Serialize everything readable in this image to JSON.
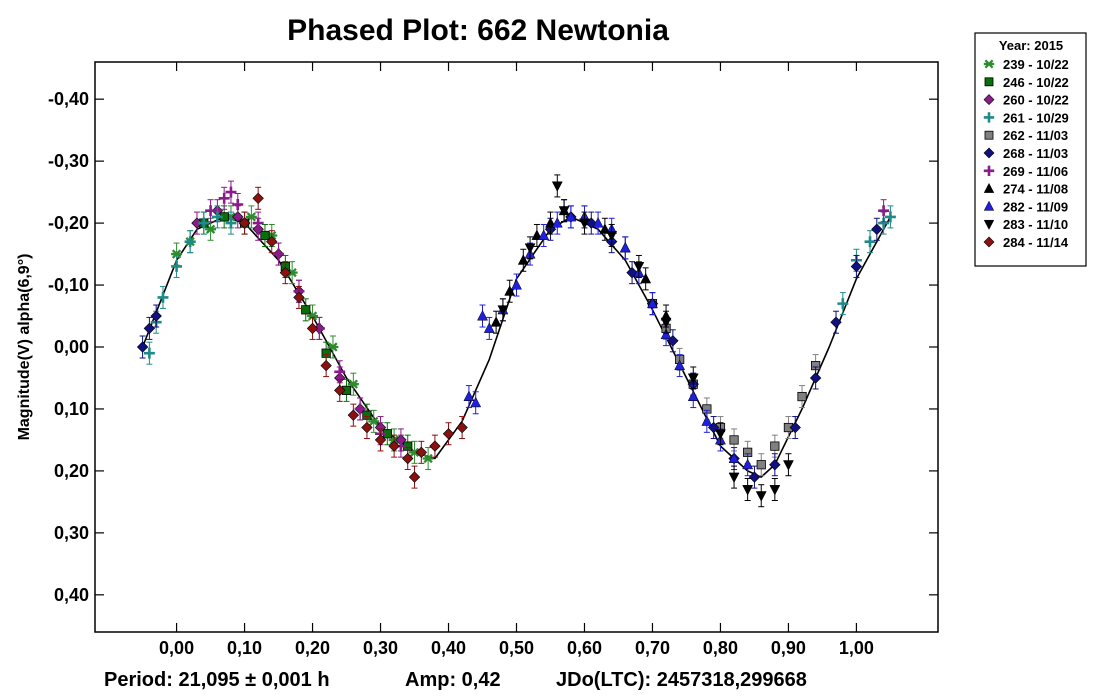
{
  "chart_data": {
    "type": "scatter",
    "title": "Phased Plot: 662 Newtonia",
    "xlabel": "",
    "ylabel": "Magnitude(V) alpha(6,9°)",
    "xlim": [
      -0.12,
      1.12
    ],
    "ylim": [
      -0.46,
      0.46
    ],
    "y_inverted": true,
    "x_ticks": [
      0.0,
      0.1,
      0.2,
      0.3,
      0.4,
      0.5,
      0.6,
      0.7,
      0.8,
      0.9,
      1.0
    ],
    "x_tick_labels": [
      "0,00",
      "0,10",
      "0,20",
      "0,30",
      "0,40",
      "0,50",
      "0,60",
      "0,70",
      "0,80",
      "0,90",
      "1,00"
    ],
    "y_ticks": [
      -0.4,
      -0.3,
      -0.2,
      -0.1,
      0.0,
      0.1,
      0.2,
      0.3,
      0.4
    ],
    "y_tick_labels": [
      "-0,40",
      "-0,30",
      "-0,20",
      "-0,10",
      "0,00",
      "0,10",
      "0,20",
      "0,30",
      "0,40"
    ],
    "fit_curve": {
      "x": [
        -0.05,
        0.0,
        0.03,
        0.07,
        0.1,
        0.15,
        0.2,
        0.25,
        0.3,
        0.35,
        0.38,
        0.42,
        0.46,
        0.5,
        0.55,
        0.58,
        0.62,
        0.66,
        0.7,
        0.75,
        0.8,
        0.84,
        0.86,
        0.88,
        0.92,
        0.96,
        1.0,
        1.05
      ],
      "y": [
        0.0,
        -0.14,
        -0.19,
        -0.21,
        -0.2,
        -0.14,
        -0.05,
        0.05,
        0.13,
        0.17,
        0.18,
        0.12,
        0.02,
        -0.11,
        -0.19,
        -0.21,
        -0.19,
        -0.14,
        -0.06,
        0.05,
        0.16,
        0.2,
        0.21,
        0.19,
        0.1,
        0.0,
        -0.11,
        -0.21
      ]
    },
    "legend": {
      "header": "Year: 2015",
      "position": "right",
      "entries": [
        {
          "label": "239 - 10/22",
          "marker": "asterisk",
          "color": "#2e8b2e"
        },
        {
          "label": "246 - 10/22",
          "marker": "square",
          "color": "#0a6e0a"
        },
        {
          "label": "260 - 10/22",
          "marker": "diamond",
          "color": "#8b1a8b"
        },
        {
          "label": "261 - 10/29",
          "marker": "plus",
          "color": "#1f8a8a"
        },
        {
          "label": "262 - 11/03",
          "marker": "square",
          "color": "#808080"
        },
        {
          "label": "268 - 11/03",
          "marker": "diamond",
          "color": "#101080"
        },
        {
          "label": "269 - 11/06",
          "marker": "plus",
          "color": "#8b1a8b"
        },
        {
          "label": "274 - 11/08",
          "marker": "triangle-up",
          "color": "#000000"
        },
        {
          "label": "282 - 11/09",
          "marker": "triangle-up",
          "color": "#1f1fe0"
        },
        {
          "label": "283 - 11/10",
          "marker": "triangle-down",
          "color": "#000000"
        },
        {
          "label": "284 - 11/14",
          "marker": "diamond",
          "color": "#8b1010"
        }
      ]
    },
    "series": [
      {
        "name": "239 - 10/22",
        "x": [
          0.0,
          0.02,
          0.05,
          0.08,
          0.11,
          0.14,
          0.17,
          0.2,
          0.23,
          0.26,
          0.29,
          0.32,
          0.35,
          0.37
        ],
        "y": [
          -0.15,
          -0.17,
          -0.19,
          -0.21,
          -0.21,
          -0.18,
          -0.12,
          -0.05,
          0.0,
          0.06,
          0.12,
          0.15,
          0.17,
          0.18
        ]
      },
      {
        "name": "246 - 10/22",
        "x": [
          0.04,
          0.07,
          0.1,
          0.13,
          0.16,
          0.19,
          0.22,
          0.25,
          0.28,
          0.31,
          0.34
        ],
        "y": [
          -0.2,
          -0.21,
          -0.2,
          -0.18,
          -0.13,
          -0.06,
          0.01,
          0.07,
          0.11,
          0.14,
          0.16
        ]
      },
      {
        "name": "260 - 10/22",
        "x": [
          0.03,
          0.06,
          0.09,
          0.12,
          0.15,
          0.18,
          0.21,
          0.24,
          0.27,
          0.3,
          0.33
        ],
        "y": [
          -0.2,
          -0.22,
          -0.21,
          -0.19,
          -0.15,
          -0.09,
          -0.03,
          0.05,
          0.1,
          0.13,
          0.15
        ]
      },
      {
        "name": "261 - 10/29",
        "x": [
          -0.04,
          -0.03,
          -0.02,
          0.0,
          0.02,
          0.04,
          0.06,
          0.08,
          0.1,
          0.98,
          1.0,
          1.02,
          1.04,
          1.05
        ],
        "y": [
          0.01,
          -0.04,
          -0.08,
          -0.13,
          -0.17,
          -0.2,
          -0.21,
          -0.2,
          -0.2,
          -0.07,
          -0.14,
          -0.17,
          -0.2,
          -0.21
        ]
      },
      {
        "name": "262 - 11/03",
        "x": [
          0.7,
          0.72,
          0.74,
          0.76,
          0.78,
          0.8,
          0.82,
          0.84,
          0.86,
          0.88,
          0.9,
          0.92,
          0.94
        ],
        "y": [
          -0.07,
          -0.03,
          0.02,
          0.06,
          0.1,
          0.13,
          0.15,
          0.17,
          0.19,
          0.16,
          0.13,
          0.08,
          0.03
        ]
      },
      {
        "name": "268 - 11/03",
        "x": [
          0.55,
          0.58,
          0.61,
          0.64,
          0.67,
          0.7,
          0.73,
          0.76,
          0.79,
          0.82,
          0.85,
          0.88,
          0.91,
          0.94,
          0.97,
          1.0,
          1.03,
          -0.05,
          -0.04,
          -0.03
        ],
        "y": [
          -0.19,
          -0.21,
          -0.2,
          -0.17,
          -0.12,
          -0.07,
          -0.01,
          0.06,
          0.13,
          0.18,
          0.21,
          0.19,
          0.13,
          0.05,
          -0.04,
          -0.13,
          -0.19,
          0.0,
          -0.03,
          -0.05
        ]
      },
      {
        "name": "269 - 11/06",
        "x": [
          0.05,
          0.07,
          0.08,
          0.09,
          0.12,
          0.15,
          0.18,
          0.21,
          0.24,
          0.27,
          0.3,
          0.33,
          1.04
        ],
        "y": [
          -0.22,
          -0.24,
          -0.25,
          -0.23,
          -0.2,
          -0.15,
          -0.09,
          -0.03,
          0.04,
          0.1,
          0.14,
          0.16,
          -0.22
        ]
      },
      {
        "name": "274 - 11/08",
        "x": [
          0.47,
          0.49,
          0.51,
          0.53,
          0.55,
          0.57,
          0.6,
          0.63,
          0.66,
          0.69,
          0.72
        ],
        "y": [
          -0.04,
          -0.09,
          -0.14,
          -0.18,
          -0.2,
          -0.22,
          -0.21,
          -0.19,
          -0.16,
          -0.11,
          -0.05
        ]
      },
      {
        "name": "282 - 11/09",
        "x": [
          0.43,
          0.44,
          0.45,
          0.46,
          0.48,
          0.5,
          0.52,
          0.54,
          0.56,
          0.58,
          0.6,
          0.62,
          0.64,
          0.66,
          0.68,
          0.7,
          0.72,
          0.74,
          0.76,
          0.78,
          0.8,
          0.82,
          0.84
        ],
        "y": [
          0.08,
          0.09,
          -0.05,
          -0.03,
          -0.06,
          -0.1,
          -0.15,
          -0.18,
          -0.2,
          -0.21,
          -0.21,
          -0.2,
          -0.19,
          -0.16,
          -0.12,
          -0.07,
          -0.02,
          0.03,
          0.08,
          0.12,
          0.15,
          0.18,
          0.19
        ]
      },
      {
        "name": "283 - 11/10",
        "x": [
          0.48,
          0.52,
          0.56,
          0.57,
          0.6,
          0.64,
          0.68,
          0.72,
          0.76,
          0.8,
          0.82,
          0.84,
          0.86,
          0.88,
          0.9
        ],
        "y": [
          -0.06,
          -0.16,
          -0.26,
          -0.22,
          -0.2,
          -0.18,
          -0.13,
          -0.04,
          0.05,
          0.14,
          0.21,
          0.23,
          0.24,
          0.23,
          0.19
        ]
      },
      {
        "name": "284 - 11/14",
        "x": [
          0.1,
          0.12,
          0.14,
          0.16,
          0.18,
          0.2,
          0.22,
          0.24,
          0.26,
          0.28,
          0.3,
          0.32,
          0.34,
          0.35,
          0.36,
          0.38,
          0.4,
          0.42
        ],
        "y": [
          -0.2,
          -0.24,
          -0.17,
          -0.12,
          -0.08,
          -0.03,
          0.03,
          0.07,
          0.11,
          0.13,
          0.15,
          0.16,
          0.18,
          0.21,
          0.17,
          0.16,
          0.14,
          0.13
        ]
      }
    ]
  },
  "footer": {
    "period": "Period: 21,095 ± 0,001 h",
    "amp": "Amp: 0,42",
    "jdo": "JDo(LTC): 2457318,299668"
  }
}
